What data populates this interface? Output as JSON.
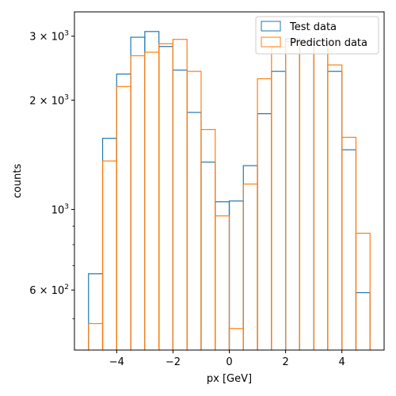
{
  "chart_data": {
    "type": "histogram",
    "xlabel": "px [GeV]",
    "ylabel": "counts",
    "y_scale": "log",
    "xlim": [
      -5.5,
      5.5
    ],
    "ylim": [
      410,
      3500
    ],
    "legend_position": "top-right",
    "bin_edges": [
      -5.0,
      -4.5,
      -4.0,
      -3.5,
      -3.0,
      -2.5,
      -2.0,
      -1.5,
      -1.0,
      -0.5,
      0.0,
      0.5,
      1.0,
      1.5,
      2.0,
      2.5,
      3.0,
      3.5,
      4.0,
      4.5,
      5.0
    ],
    "series": [
      {
        "name": "Test data",
        "color": "#1f77b4",
        "values": [
          665,
          1570,
          2360,
          2980,
          3090,
          2810,
          2420,
          1850,
          1350,
          1050,
          1055,
          1320,
          1835,
          2400,
          2950,
          2900,
          2900,
          2400,
          1460,
          590
        ]
      },
      {
        "name": "Prediction data",
        "color": "#ff7f0e",
        "values": [
          485,
          1360,
          2180,
          2650,
          2710,
          2860,
          2940,
          2400,
          1660,
          960,
          470,
          1175,
          2290,
          2800,
          2900,
          2900,
          2900,
          2500,
          1580,
          860
        ]
      }
    ],
    "x_ticks": [
      {
        "value": -4,
        "label": "−4"
      },
      {
        "value": -2,
        "label": "−2"
      },
      {
        "value": 0,
        "label": "0"
      },
      {
        "value": 2,
        "label": "2"
      },
      {
        "value": 4,
        "label": "4"
      }
    ],
    "y_ticks": [
      {
        "value": 600,
        "mantissa": "6",
        "exponent": "2",
        "label": "6 × 10^2"
      },
      {
        "value": 1000,
        "mantissa": "10",
        "exponent": "3",
        "label": "10^3"
      },
      {
        "value": 2000,
        "mantissa": "2",
        "exponent": "3",
        "label": "2 × 10^3"
      },
      {
        "value": 3000,
        "mantissa": "3",
        "exponent": "3",
        "label": "3 × 10^3"
      }
    ],
    "y_minor_ticks": [
      500,
      700,
      800,
      900
    ]
  }
}
